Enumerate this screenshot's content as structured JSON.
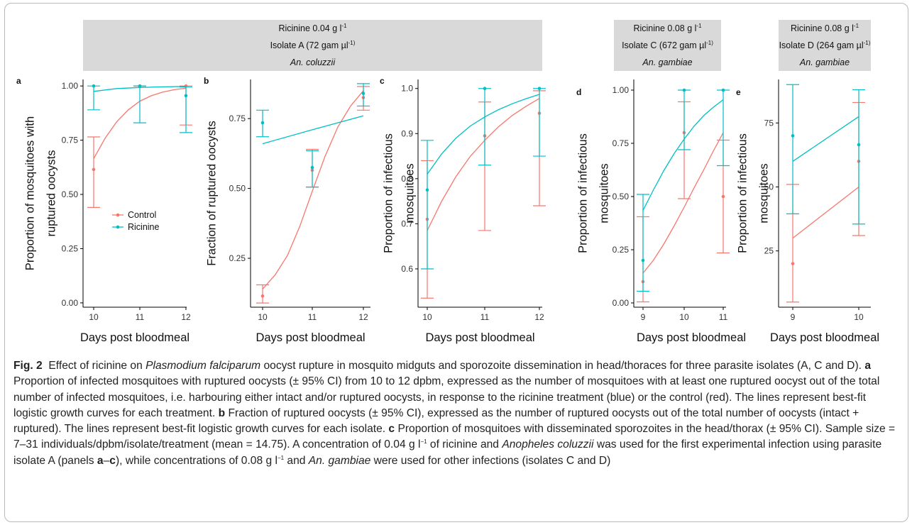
{
  "strips": [
    {
      "id": "A",
      "lines": [
        "Ricinine 0.04 g l",
        "Isolate A (72 gam µl",
        "An. coluzzii"
      ],
      "sups": [
        "-1",
        "-1)",
        ""
      ]
    },
    {
      "id": "C",
      "lines": [
        "Ricinine 0.08 g l",
        "Isolate C (672 gam µl",
        "An. gambiae"
      ],
      "sups": [
        "-1",
        "-1)",
        ""
      ]
    },
    {
      "id": "D",
      "lines": [
        "Ricinine 0.08 g l",
        "Isolate D (264 gam µl",
        "An. gambiae"
      ],
      "sups": [
        "-1",
        "-1)",
        ""
      ]
    }
  ],
  "colors": {
    "control": "#F8766D",
    "ricinine": "#00BFC4",
    "axis": "#000000",
    "text": "#222222"
  },
  "legend": {
    "items": [
      {
        "label": "Control",
        "color": "#F8766D"
      },
      {
        "label": "Ricinine",
        "color": "#00BFC4"
      }
    ]
  },
  "chart_data": [
    {
      "panel": "a",
      "type": "line",
      "ylabel_lines": [
        "Proportion of mosquitoes with",
        "ruptured oocysts"
      ],
      "xlabel": "Days post bloodmeal",
      "x": [
        10,
        11,
        12
      ],
      "xticks": [
        "10",
        "11",
        "12"
      ],
      "ylim": [
        -0.02,
        1.03
      ],
      "yticks": [
        0.0,
        0.25,
        0.5,
        0.75,
        1.0
      ],
      "ytick_labels": [
        "0.00",
        "0.25",
        "0.50",
        "0.75",
        "1.00"
      ],
      "series": [
        {
          "name": "Control",
          "color": "#F8766D",
          "points": [
            {
              "x": 10,
              "y": 0.615,
              "lo": 0.44,
              "hi": 0.765
            },
            {
              "x": 11,
              "y": 1.0,
              "lo": 1.0,
              "hi": 1.0
            },
            {
              "x": 12,
              "y": 1.0,
              "lo": 0.82,
              "hi": 1.0
            }
          ],
          "fit": [
            [
              10,
              0.665
            ],
            [
              10.25,
              0.76
            ],
            [
              10.5,
              0.835
            ],
            [
              10.75,
              0.89
            ],
            [
              11,
              0.93
            ],
            [
              11.25,
              0.955
            ],
            [
              11.5,
              0.972
            ],
            [
              11.75,
              0.983
            ],
            [
              12,
              0.99
            ]
          ]
        },
        {
          "name": "Ricinine",
          "color": "#00BFC4",
          "points": [
            {
              "x": 10,
              "y": 1.0,
              "lo": 0.89,
              "hi": 1.0
            },
            {
              "x": 11,
              "y": 1.0,
              "lo": 0.83,
              "hi": 1.0
            },
            {
              "x": 12,
              "y": 0.955,
              "lo": 0.785,
              "hi": 0.995
            }
          ],
          "fit": [
            [
              10,
              0.975
            ],
            [
              10.5,
              0.988
            ],
            [
              11,
              0.993
            ],
            [
              11.5,
              0.996
            ],
            [
              12,
              0.998
            ]
          ]
        }
      ]
    },
    {
      "panel": "b",
      "type": "line",
      "ylabel_lines": [
        "Fraction of ruptured oocysts"
      ],
      "xlabel": "Days post bloodmeal",
      "x": [
        10,
        11,
        12
      ],
      "xticks": [
        "10",
        "11",
        "12"
      ],
      "ylim": [
        0.075,
        0.89
      ],
      "yticks": [
        0.25,
        0.5,
        0.75
      ],
      "ytick_labels": [
        "0.25",
        "0.50",
        "0.75"
      ],
      "series": [
        {
          "name": "Control",
          "color": "#F8766D",
          "points": [
            {
              "x": 10,
              "y": 0.115,
              "lo": 0.09,
              "hi": 0.155
            },
            {
              "x": 11,
              "y": 0.565,
              "lo": 0.505,
              "hi": 0.64
            },
            {
              "x": 12,
              "y": 0.825,
              "lo": 0.78,
              "hi": 0.865
            }
          ],
          "fit": [
            [
              10,
              0.14
            ],
            [
              10.25,
              0.19
            ],
            [
              10.5,
              0.26
            ],
            [
              10.75,
              0.365
            ],
            [
              11,
              0.49
            ],
            [
              11.25,
              0.615
            ],
            [
              11.5,
              0.72
            ],
            [
              11.75,
              0.795
            ],
            [
              12,
              0.85
            ]
          ]
        },
        {
          "name": "Ricinine",
          "color": "#00BFC4",
          "points": [
            {
              "x": 10,
              "y": 0.735,
              "lo": 0.685,
              "hi": 0.78
            },
            {
              "x": 11,
              "y": 0.575,
              "lo": 0.505,
              "hi": 0.635
            },
            {
              "x": 12,
              "y": 0.84,
              "lo": 0.795,
              "hi": 0.875
            }
          ],
          "fit": [
            [
              10,
              0.66
            ],
            [
              11,
              0.71
            ],
            [
              12,
              0.76
            ]
          ]
        }
      ]
    },
    {
      "panel": "c",
      "type": "line",
      "ylabel_lines": [
        "Proportion of infectious",
        "mosquitoes"
      ],
      "xlabel": "Days post bloodmeal",
      "x": [
        10,
        11,
        12
      ],
      "xticks": [
        "10",
        "11",
        "12"
      ],
      "ylim": [
        0.515,
        1.02
      ],
      "yticks": [
        0.6,
        0.7,
        0.8,
        0.9,
        1.0
      ],
      "ytick_labels": [
        "0.6",
        "0.7",
        "0.8",
        "0.9",
        "1.0"
      ],
      "series": [
        {
          "name": "Control",
          "color": "#F8766D",
          "points": [
            {
              "x": 10,
              "y": 0.71,
              "lo": 0.535,
              "hi": 0.84
            },
            {
              "x": 11,
              "y": 0.895,
              "lo": 0.685,
              "hi": 0.97
            },
            {
              "x": 12,
              "y": 0.945,
              "lo": 0.74,
              "hi": 0.995
            }
          ],
          "fit": [
            [
              10,
              0.685
            ],
            [
              10.25,
              0.75
            ],
            [
              10.5,
              0.805
            ],
            [
              10.75,
              0.85
            ],
            [
              11,
              0.885
            ],
            [
              11.25,
              0.915
            ],
            [
              11.5,
              0.94
            ],
            [
              11.75,
              0.96
            ],
            [
              12,
              0.978
            ]
          ]
        },
        {
          "name": "Ricinine",
          "color": "#00BFC4",
          "points": [
            {
              "x": 10,
              "y": 0.775,
              "lo": 0.6,
              "hi": 0.885
            },
            {
              "x": 11,
              "y": 1.0,
              "lo": 0.83,
              "hi": 1.0
            },
            {
              "x": 12,
              "y": 1.0,
              "lo": 0.85,
              "hi": 1.0
            }
          ],
          "fit": [
            [
              10,
              0.81
            ],
            [
              10.25,
              0.855
            ],
            [
              10.5,
              0.89
            ],
            [
              10.75,
              0.917
            ],
            [
              11,
              0.937
            ],
            [
              11.25,
              0.953
            ],
            [
              11.5,
              0.966
            ],
            [
              11.75,
              0.977
            ],
            [
              12,
              0.987
            ]
          ]
        }
      ]
    },
    {
      "panel": "d",
      "type": "line",
      "ylabel_lines": [
        "Proportion of infectious",
        "mosquitoes"
      ],
      "xlabel": "Days post bloodmeal",
      "x": [
        9,
        10,
        11
      ],
      "xticks": [
        "9",
        "10",
        "11"
      ],
      "ylim": [
        -0.02,
        1.05
      ],
      "yticks": [
        0.0,
        0.25,
        0.5,
        0.75,
        1.0
      ],
      "ytick_labels": [
        "0.00",
        "0.25",
        "0.50",
        "0.75",
        "1.00"
      ],
      "series": [
        {
          "name": "Control",
          "color": "#F8766D",
          "points": [
            {
              "x": 9,
              "y": 0.1,
              "lo": 0.005,
              "hi": 0.405
            },
            {
              "x": 10,
              "y": 0.8,
              "lo": 0.49,
              "hi": 0.945
            },
            {
              "x": 11,
              "y": 0.5,
              "lo": 0.235,
              "hi": 0.765
            }
          ],
          "fit": [
            [
              9,
              0.14
            ],
            [
              9.25,
              0.2
            ],
            [
              9.5,
              0.275
            ],
            [
              9.75,
              0.36
            ],
            [
              10,
              0.45
            ],
            [
              10.25,
              0.54
            ],
            [
              10.5,
              0.625
            ],
            [
              10.75,
              0.715
            ],
            [
              11,
              0.8
            ]
          ]
        },
        {
          "name": "Ricinine",
          "color": "#00BFC4",
          "points": [
            {
              "x": 9,
              "y": 0.2,
              "lo": 0.055,
              "hi": 0.51
            },
            {
              "x": 10,
              "y": 1.0,
              "lo": 0.72,
              "hi": 1.0
            },
            {
              "x": 11,
              "y": 1.0,
              "lo": 0.645,
              "hi": 1.0
            }
          ],
          "fit": [
            [
              9,
              0.435
            ],
            [
              9.25,
              0.53
            ],
            [
              9.5,
              0.62
            ],
            [
              9.75,
              0.7
            ],
            [
              10,
              0.77
            ],
            [
              10.25,
              0.83
            ],
            [
              10.5,
              0.88
            ],
            [
              10.75,
              0.92
            ],
            [
              11,
              0.955
            ]
          ]
        }
      ]
    },
    {
      "panel": "e",
      "type": "line",
      "ylabel_lines": [
        "Proportion of infectious",
        "mosquitoes"
      ],
      "xlabel": "Days post bloodmeal",
      "x": [
        9,
        10
      ],
      "xticks": [
        "9",
        "10"
      ],
      "ylim": [
        3,
        92
      ],
      "yticks": [
        25,
        50,
        75
      ],
      "ytick_labels": [
        "25",
        "50",
        "75"
      ],
      "series": [
        {
          "name": "Control",
          "color": "#F8766D",
          "points": [
            {
              "x": 9,
              "y": 20,
              "lo": 5,
              "hi": 51
            },
            {
              "x": 10,
              "y": 60,
              "lo": 31,
              "hi": 83
            }
          ],
          "fit": [
            [
              9,
              30
            ],
            [
              10,
              50
            ]
          ]
        },
        {
          "name": "Ricinine",
          "color": "#00BFC4",
          "points": [
            {
              "x": 9,
              "y": 70,
              "lo": 39.5,
              "hi": 90
            },
            {
              "x": 10,
              "y": 66.5,
              "lo": 35.5,
              "hi": 88
            }
          ],
          "fit": [
            [
              9,
              60
            ],
            [
              10,
              77.5
            ]
          ]
        }
      ]
    }
  ],
  "caption": {
    "fig_label": "Fig. 2",
    "intro": "Effect of ricinine on ",
    "species": "Plasmodium falciparum",
    "intro2": " oocyst rupture in mosquito midguts and sporozoite dissemination in head/thoraces for three parasite isolates (A, C and D). ",
    "a_label": "a",
    "a_text": " Proportion of infected mosquitoes with ruptured oocysts (± 95% CI) from 10 to 12 dpbm, expressed as the number of mosquitoes with at least one ruptured oocyst out of the total number of infected mosquitoes, i.e. harbouring either intact and/or ruptured oocysts, in response to the ricinine treatment (blue) or the control (red). The lines represent best-fit logistic growth curves for each treatment. ",
    "b_label": "b",
    "b_text": " Fraction of ruptured oocysts (± 95% CI), expressed as the number of ruptured oocysts out of the total number of oocysts (intact + ruptured). The lines represent best-fit logistic growth curves for each isolate. ",
    "c_label": "c",
    "c_text": " Proportion of mosquitoes with disseminated sporozoites in the head/thorax (± 95% CI). Sample size = 7–31 individuals/dpbm/isolate/treatment (mean = 14.75). A concentration of 0.04 g l",
    "sup1": "−1",
    "c_text2": " of ricinine and ",
    "species2": "Anopheles coluzzii",
    "c_text3": " was used for the first experimental infection using parasite isolate A (panels ",
    "panels_a": "a",
    "dash": "–",
    "panels_c": "c",
    "c_text4": "), while concentrations of 0.08 g l",
    "sup2": "−1",
    "c_text5": " and ",
    "species3": "An. gambiae",
    "c_text6": " were used for other infections (isolates C and D)"
  }
}
